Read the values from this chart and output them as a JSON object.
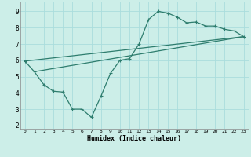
{
  "xlabel": "Humidex (Indice chaleur)",
  "background_color": "#cceee8",
  "grid_color": "#aadddd",
  "line_color": "#2e7d6e",
  "xlim": [
    -0.5,
    23.5
  ],
  "ylim": [
    1.8,
    9.6
  ],
  "xticks": [
    0,
    1,
    2,
    3,
    4,
    5,
    6,
    7,
    8,
    9,
    10,
    11,
    12,
    13,
    14,
    15,
    16,
    17,
    18,
    19,
    20,
    21,
    22,
    23
  ],
  "yticks": [
    2,
    3,
    4,
    5,
    6,
    7,
    8,
    9
  ],
  "line1_x": [
    0,
    1,
    2,
    3,
    4,
    5,
    6,
    7,
    8,
    9,
    10,
    11,
    12,
    13,
    14,
    15,
    16,
    17,
    18,
    19,
    20,
    21,
    22,
    23
  ],
  "line1_y": [
    5.95,
    5.3,
    4.5,
    4.1,
    4.05,
    3.0,
    3.0,
    2.5,
    3.8,
    5.2,
    6.0,
    6.1,
    7.0,
    8.5,
    9.0,
    8.9,
    8.65,
    8.3,
    8.35,
    8.1,
    8.1,
    7.9,
    7.8,
    7.45
  ],
  "line2_x": [
    1,
    23
  ],
  "line2_y": [
    5.3,
    7.45
  ],
  "line3_x": [
    0,
    23
  ],
  "line3_y": [
    5.95,
    7.45
  ]
}
